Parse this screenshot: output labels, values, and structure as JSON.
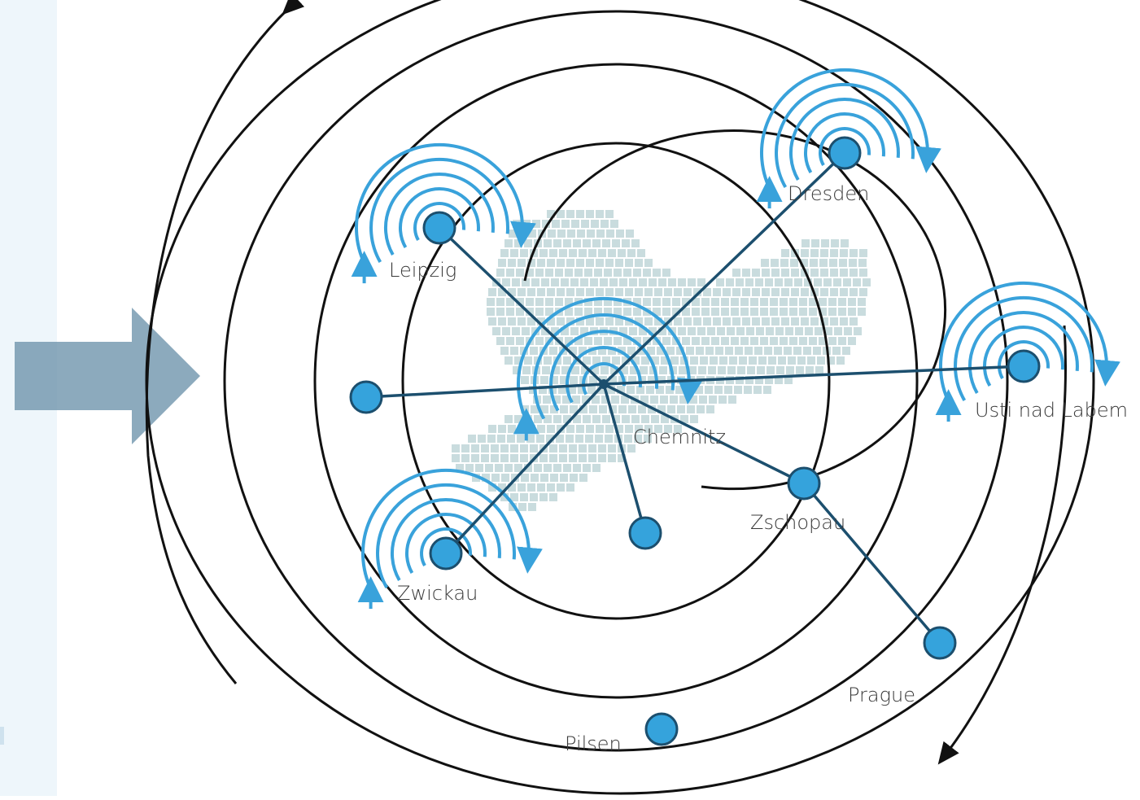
{
  "diagram": {
    "hub": "Chemnitz",
    "cities": [
      {
        "key": "leipzig",
        "label": "Leipzig"
      },
      {
        "key": "dresden",
        "label": "Dresden"
      },
      {
        "key": "usti",
        "label": "Usti nad Labem"
      },
      {
        "key": "chemnitz",
        "label": "Chemnitz"
      },
      {
        "key": "zschopau",
        "label": "Zschopau"
      },
      {
        "key": "zwickau",
        "label": "Zwickau"
      },
      {
        "key": "prague",
        "label": "Prague"
      },
      {
        "key": "pilsen",
        "label": "Pilsen"
      }
    ],
    "colors": {
      "ring": "#111111",
      "spiral": "#39a2db",
      "node_fill": "#35a3dc",
      "node_stroke": "#1c4f6e",
      "link": "#1c4f6e",
      "map_cell": "#bfd6d8",
      "arrow": "#6f95ad",
      "panel": "#eef6fb"
    }
  }
}
